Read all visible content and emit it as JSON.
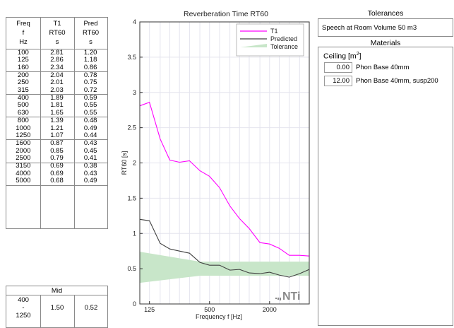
{
  "table": {
    "headers": [
      [
        "Freq",
        "f",
        "Hz"
      ],
      [
        "T1",
        "RT60",
        "s"
      ],
      [
        "Pred",
        "RT60",
        "s"
      ]
    ],
    "rows": [
      [
        "100",
        "2.81",
        "1.20"
      ],
      [
        "125",
        "2.86",
        "1.18"
      ],
      [
        "160",
        "2.34",
        "0.86"
      ],
      [
        "200",
        "2.04",
        "0.78"
      ],
      [
        "250",
        "2.01",
        "0.75"
      ],
      [
        "315",
        "2.03",
        "0.72"
      ],
      [
        "400",
        "1.89",
        "0.59"
      ],
      [
        "500",
        "1.81",
        "0.55"
      ],
      [
        "630",
        "1.65",
        "0.55"
      ],
      [
        "800",
        "1.39",
        "0.48"
      ],
      [
        "1000",
        "1.21",
        "0.49"
      ],
      [
        "1250",
        "1.07",
        "0.44"
      ],
      [
        "1600",
        "0.87",
        "0.43"
      ],
      [
        "2000",
        "0.85",
        "0.45"
      ],
      [
        "2500",
        "0.79",
        "0.41"
      ],
      [
        "3150",
        "0.69",
        "0.38"
      ],
      [
        "4000",
        "0.69",
        "0.43"
      ],
      [
        "5000",
        "0.68",
        "0.49"
      ]
    ]
  },
  "mid": {
    "title": "Mid",
    "range_lines": [
      "400",
      "-",
      "1250"
    ],
    "t1": "1.50",
    "pred": "0.52"
  },
  "tolerances": {
    "title": "Tolerances",
    "text": "Speech at Room Volume 50 m3"
  },
  "materials": {
    "title": "Materials",
    "group_label": "Ceiling [m",
    "group_sup": "2",
    "group_close": "]",
    "items": [
      {
        "value": "0.00",
        "name": "Phon Base 40mm"
      },
      {
        "value": "12.00",
        "name": "Phon Base 40mm, susp200"
      }
    ]
  },
  "chart_data": {
    "type": "line",
    "title": "Reverberation Time RT60",
    "xlabel": "Frequency f [Hz]",
    "ylabel": "RT60 [s]",
    "x_scale": "log",
    "x": [
      100,
      125,
      160,
      200,
      250,
      315,
      400,
      500,
      630,
      800,
      1000,
      1250,
      1600,
      2000,
      2500,
      3150,
      4000,
      5000
    ],
    "xlim": [
      100,
      5000
    ],
    "ylim": [
      0,
      4
    ],
    "xticks": [
      125,
      500,
      2000
    ],
    "yticks": [
      0,
      0.5,
      1,
      1.5,
      2,
      2.5,
      3,
      3.5,
      4
    ],
    "grid": true,
    "legend_position": "top-right",
    "series": [
      {
        "name": "T1",
        "color": "#ff00ff",
        "values": [
          2.81,
          2.86,
          2.34,
          2.04,
          2.01,
          2.03,
          1.89,
          1.81,
          1.65,
          1.39,
          1.21,
          1.07,
          0.87,
          0.85,
          0.79,
          0.69,
          0.69,
          0.68
        ]
      },
      {
        "name": "Predicted",
        "color": "#404040",
        "values": [
          1.2,
          1.18,
          0.86,
          0.78,
          0.75,
          0.72,
          0.59,
          0.55,
          0.55,
          0.48,
          0.49,
          0.44,
          0.43,
          0.45,
          0.41,
          0.38,
          0.43,
          0.49
        ]
      }
    ],
    "tolerance": {
      "name": "Tolerance",
      "color": "#c8e6c9",
      "x": [
        100,
        400,
        5000
      ],
      "upper": [
        0.74,
        0.6,
        0.6
      ],
      "lower": [
        0.3,
        0.4,
        0.4
      ]
    },
    "watermark": "NTi"
  }
}
